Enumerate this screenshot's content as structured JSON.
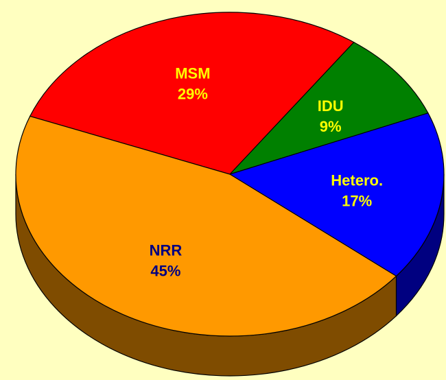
{
  "chart_data": {
    "type": "pie",
    "categories": [
      "MSM",
      "IDU",
      "Hetero.",
      "NRR"
    ],
    "values": [
      29,
      9,
      17,
      45
    ],
    "value_labels": [
      "29%",
      "9%",
      "17%",
      "45%"
    ],
    "colors": [
      "#ff0000",
      "#008000",
      "#0000ff",
      "#ff9900"
    ],
    "side_colors": [
      "#800000",
      "#004000",
      "#000080",
      "#7f4c00"
    ],
    "label_colors": [
      "#ffff00",
      "#ffff00",
      "#ffff00",
      "#000080"
    ]
  }
}
